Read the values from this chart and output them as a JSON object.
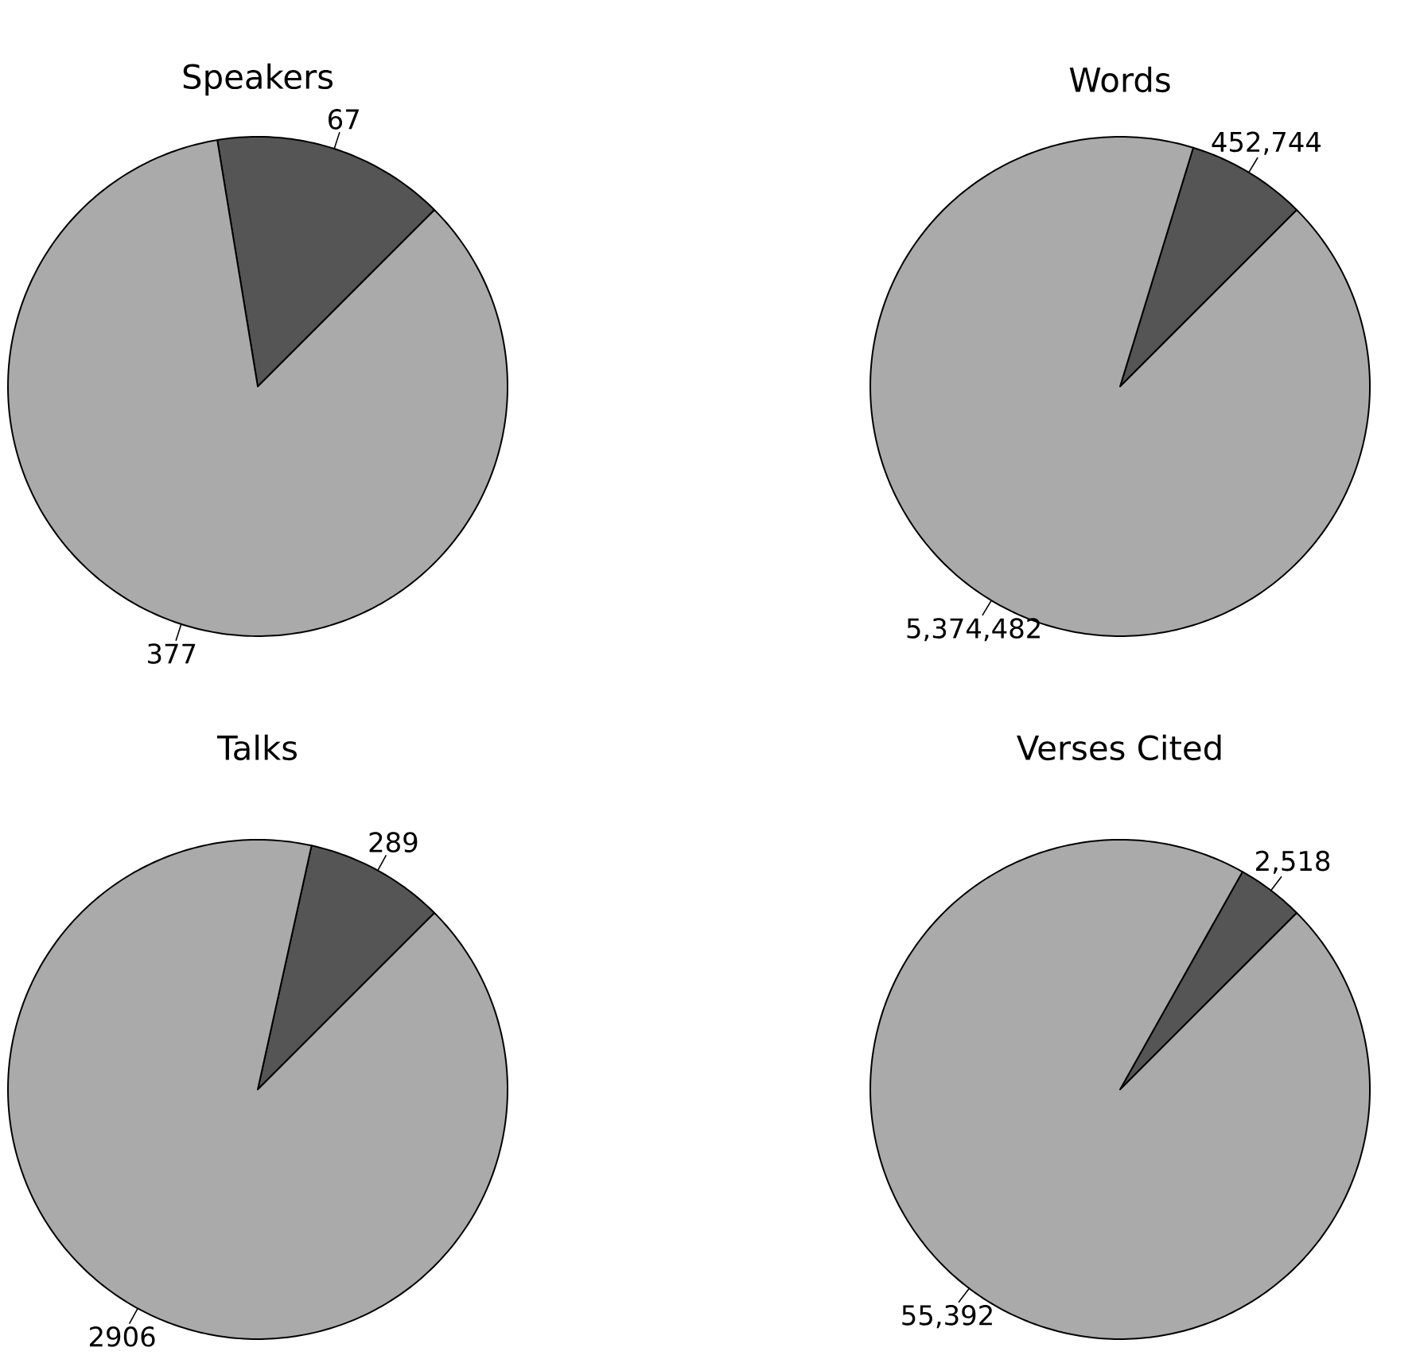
{
  "chart_data": [
    {
      "type": "pie",
      "title": "Speakers",
      "categories": [
        null,
        null
      ],
      "values": [
        67,
        377
      ],
      "colors": [
        "#555555",
        "#aaaaaa"
      ],
      "value_labels": [
        "67",
        "377"
      ]
    },
    {
      "type": "pie",
      "title": "Words",
      "categories": [
        null,
        null
      ],
      "values": [
        452744,
        5374482
      ],
      "colors": [
        "#555555",
        "#aaaaaa"
      ],
      "value_labels": [
        "452,744",
        "5,374,482"
      ]
    },
    {
      "type": "pie",
      "title": "Talks",
      "categories": [
        null,
        null
      ],
      "values": [
        289,
        2906
      ],
      "colors": [
        "#555555",
        "#aaaaaa"
      ],
      "value_labels": [
        "289",
        "2906"
      ]
    },
    {
      "type": "pie",
      "title": "Verses Cited",
      "categories": [
        null,
        null
      ],
      "values": [
        2518,
        55392
      ],
      "colors": [
        "#555555",
        "#aaaaaa"
      ],
      "value_labels": [
        "2,518",
        "55,392"
      ]
    }
  ]
}
